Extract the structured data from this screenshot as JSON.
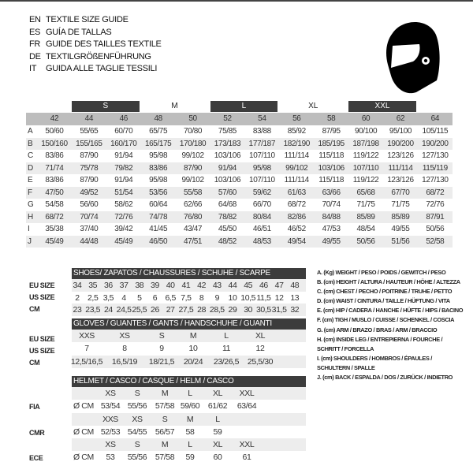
{
  "titles": [
    {
      "code": "EN",
      "text": "TEXTILE SIZE GUIDE"
    },
    {
      "code": "ES",
      "text": "GUÍA DE TALLAS"
    },
    {
      "code": "FR",
      "text": "GUIDE DES TAILLES TEXTILE"
    },
    {
      "code": "DE",
      "text": "TEXTILGRÖßENFÜHRUNG"
    },
    {
      "code": "IT",
      "text": "GUIDA ALLE TAGLIE TESSILI"
    }
  ],
  "icon": "helmet-icon",
  "textile": {
    "size_bands": [
      "S",
      "M",
      "L",
      "XL",
      "XXL"
    ],
    "eu_sizes": [
      "42",
      "44",
      "46",
      "48",
      "50",
      "52",
      "54",
      "56",
      "58",
      "60",
      "62",
      "64"
    ],
    "rows": [
      {
        "label": "A",
        "values": [
          "50/60",
          "55/65",
          "60/70",
          "65/75",
          "70/80",
          "75/85",
          "83/88",
          "85/92",
          "87/95",
          "90/100",
          "95/100",
          "105/115"
        ]
      },
      {
        "label": "B",
        "values": [
          "150/160",
          "155/165",
          "160/170",
          "165/175",
          "170/180",
          "173/183",
          "177/187",
          "182/190",
          "185/195",
          "187/198",
          "190/200",
          "190/200"
        ]
      },
      {
        "label": "C",
        "values": [
          "83/86",
          "87/90",
          "91/94",
          "95/98",
          "99/102",
          "103/106",
          "107/110",
          "111/114",
          "115/118",
          "119/122",
          "123/126",
          "127/130"
        ]
      },
      {
        "label": "D",
        "values": [
          "71/74",
          "75/78",
          "79/82",
          "83/86",
          "87/90",
          "91/94",
          "95/98",
          "99/102",
          "103/106",
          "107/110",
          "111/114",
          "115/119"
        ]
      },
      {
        "label": "E",
        "values": [
          "83/86",
          "87/90",
          "91/94",
          "95/98",
          "99/102",
          "103/106",
          "107/110",
          "111/114",
          "115/118",
          "119/122",
          "123/126",
          "127/130"
        ]
      },
      {
        "label": "F",
        "values": [
          "47/50",
          "49/52",
          "51/54",
          "53/56",
          "55/58",
          "57/60",
          "59/62",
          "61/63",
          "63/66",
          "65/68",
          "67/70",
          "68/72"
        ]
      },
      {
        "label": "G",
        "values": [
          "54/58",
          "56/60",
          "58/62",
          "60/64",
          "62/66",
          "64/68",
          "66/70",
          "68/72",
          "70/74",
          "71/75",
          "71/75",
          "72/76"
        ]
      },
      {
        "label": "H",
        "values": [
          "68/72",
          "70/74",
          "72/76",
          "74/78",
          "76/80",
          "78/82",
          "80/84",
          "82/86",
          "84/88",
          "85/89",
          "85/89",
          "87/91"
        ]
      },
      {
        "label": "I",
        "values": [
          "35/38",
          "37/40",
          "39/42",
          "41/45",
          "43/47",
          "45/50",
          "46/51",
          "46/52",
          "47/53",
          "48/54",
          "49/55",
          "50/56"
        ]
      },
      {
        "label": "J",
        "values": [
          "45/49",
          "44/48",
          "45/49",
          "46/50",
          "47/51",
          "48/52",
          "48/53",
          "49/54",
          "49/55",
          "50/56",
          "51/56",
          "52/58"
        ]
      }
    ]
  },
  "shoes": {
    "title": "SHOES/ ZAPATOS / CHAUSSURES / SCHUHE / SCARPE",
    "rows": [
      {
        "label": "EU SIZE",
        "values": [
          "34",
          "35",
          "36",
          "37",
          "38",
          "39",
          "40",
          "41",
          "42",
          "43",
          "44",
          "45",
          "46",
          "47",
          "48"
        ]
      },
      {
        "label": "US SIZE",
        "values": [
          "2",
          "2,5",
          "3,5",
          "4",
          "5",
          "6",
          "6,5",
          "7,5",
          "8",
          "9",
          "10",
          "10,5",
          "11,5",
          "12",
          "13"
        ]
      },
      {
        "label": "CM",
        "values": [
          "23",
          "23,5",
          "24",
          "24,5",
          "25,5",
          "26",
          "27",
          "27,5",
          "28",
          "28,5",
          "29",
          "30",
          "30,5",
          "31,5",
          "32"
        ]
      }
    ]
  },
  "gloves": {
    "title": "GLOVES / GUANTES / GANTS / HANDSCHUHE / GUANTI",
    "rows": [
      {
        "label": "EU SIZE",
        "values": [
          "XXS",
          "XS",
          "S",
          "M",
          "L",
          "XL"
        ]
      },
      {
        "label": "US SIZE",
        "values": [
          "7",
          "8",
          "9",
          "10",
          "11",
          "12"
        ]
      },
      {
        "label": "CM",
        "values": [
          "12,5/16,5",
          "16,5/19",
          "18/21,5",
          "20/24",
          "23/26,5",
          "25,5/30"
        ]
      }
    ]
  },
  "helmet": {
    "title": "HELMET / CASCO / CASQUE / HELM / CASCO",
    "unit": "Ø CM",
    "standards": [
      {
        "label": "FIA",
        "sizes": [
          "XS",
          "S",
          "M",
          "L",
          "XL",
          "XXL"
        ],
        "values": [
          "53/54",
          "55/56",
          "57/58",
          "59/60",
          "61/62",
          "63/64"
        ]
      },
      {
        "label": "CMR",
        "sizes": [
          "XXS",
          "XS",
          "S",
          "M",
          "L"
        ],
        "values": [
          "52/53",
          "54/55",
          "56/57",
          "58",
          "59"
        ]
      },
      {
        "label": "ECE",
        "sizes": [
          "XS",
          "S",
          "M",
          "L",
          "XL",
          "XXL"
        ],
        "values": [
          "53",
          "55/56",
          "57/58",
          "59",
          "60",
          "61"
        ]
      }
    ]
  },
  "legend": [
    "A. (Kg) WEIGHT / PESO / POIDS / GEWITCH / PESO",
    "B. (cm) HEIGHT / ALTURA / HAUTEUR / HÖHE / ALTEZZA",
    "C. (cm) CHEST / PECHO / POITRINE / TRUHE / PETTO",
    "D. (cm) WAIST / CINTURA / TAILLE / HÜFTUNG / VITA",
    "E. (cm) HIP / CADERA / HANCHE / HÜFTE / HIPS /  BACINO",
    "F.  (cm) TIGH / MUSLO / CUISSE / SCHENKEL / COSCIA",
    "G. (cm) ARM  / BRAZO / BRAS / ARM / BRACCIO",
    "H. (cm) INSIDE LEG / ENTREPIERNA / FOURCHE /",
    "SCHRITT / FORCELLA",
    "I.  (cm) SHOULDERS / HOMBROS / ÉPAULES /",
    "SCHULTERN / SPALLE",
    "J. (cm) BACK / ESPALDA / DOS / ZURÜCK / INDIETRO"
  ]
}
